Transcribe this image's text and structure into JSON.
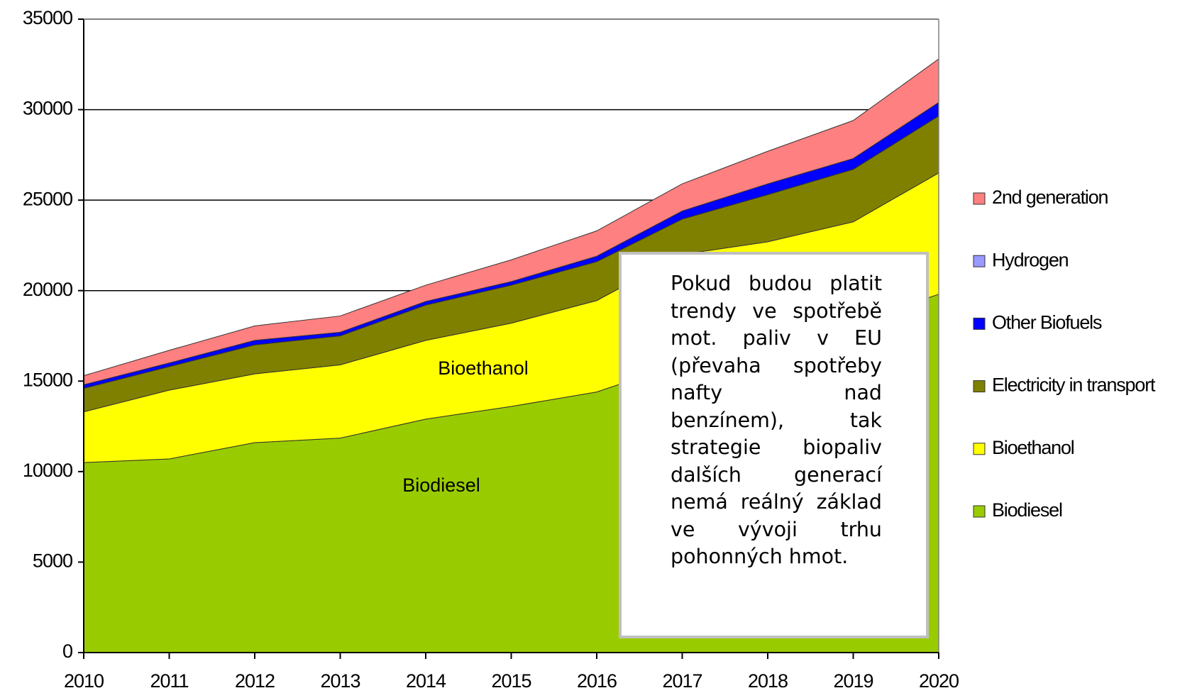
{
  "chart_data": {
    "type": "stacked_area",
    "x": [
      2010,
      2011,
      2012,
      2013,
      2014,
      2015,
      2016,
      2017,
      2018,
      2019,
      2020
    ],
    "xlim": [
      2010,
      2020
    ],
    "ylim": [
      0,
      35000
    ],
    "yticks": [
      0,
      5000,
      10000,
      15000,
      20000,
      25000,
      30000,
      35000
    ],
    "grid": true,
    "legend": "right",
    "series": [
      {
        "name": "Biodiesel",
        "color": "#99cc00",
        "values": [
          10500,
          10700,
          11600,
          11850,
          12900,
          13600,
          14400,
          16000,
          17000,
          18200,
          19800
        ]
      },
      {
        "name": "Bioethanol",
        "color": "#ffff00",
        "values": [
          2800,
          3800,
          3800,
          4050,
          4350,
          4600,
          5050,
          6000,
          5700,
          5600,
          6700
        ]
      },
      {
        "name": "Electricity in transport",
        "color": "#808000",
        "values": [
          1300,
          1300,
          1600,
          1600,
          1950,
          2100,
          2150,
          1950,
          2600,
          2900,
          3150
        ]
      },
      {
        "name": "Other Biofuels",
        "color": "#0000ff",
        "values": [
          200,
          200,
          250,
          200,
          200,
          200,
          300,
          450,
          600,
          600,
          750
        ]
      },
      {
        "name": "Hydrogen",
        "color": "#9999ff",
        "values": [
          0,
          0,
          0,
          0,
          0,
          0,
          0,
          0,
          0,
          0,
          0
        ]
      },
      {
        "name": "2nd generation",
        "color": "#ff8080",
        "values": [
          500,
          700,
          800,
          900,
          900,
          1200,
          1400,
          1500,
          1800,
          2100,
          2400
        ]
      }
    ],
    "annotations": [
      "Bioethanol",
      "Biodiesel",
      "Pokud budou platit trendy ve spotřebě mot. paliv v EU (převaha spotřeby nafty nad benzínem), tak strategie biopaliv dalších generací nemá reálný základ ve vývoji trhu pohonných hmot."
    ]
  }
}
